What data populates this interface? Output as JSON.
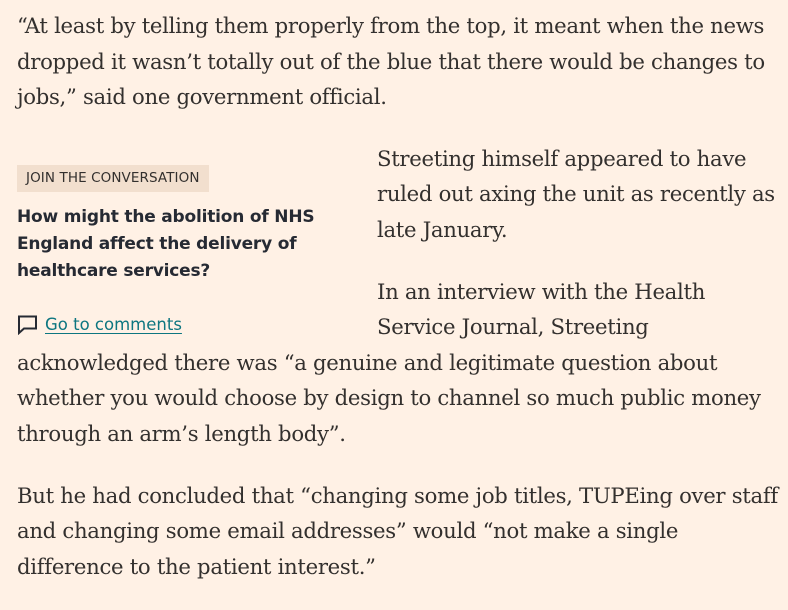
{
  "article": {
    "paragraph_1": "“At least by telling them properly from the top, it meant when the news dropped it wasn’t totally out of the blue that there would be changes to jobs,” said one government official.",
    "paragraph_2": "Streeting himself appeared to have ruled out axing the unit as recently as late January.",
    "paragraph_3": "In an interview with the Health Service Journal, Streeting acknowledged there was “a genuine and legitimate question about whether you would choose by design to channel so much public money through an arm’s length body”.",
    "paragraph_4": "But he had concluded that “changing some job titles, TUPEing over staff and changing some email addresses” would “not make a single difference to the patient interest.”"
  },
  "conversation": {
    "label": "Join the conversation",
    "question": "How might the abolition of NHS England affect the delivery of healthcare services?",
    "link_text": "Go to comments",
    "icon": "comment-icon"
  },
  "colors": {
    "background": "#fff1e5",
    "text": "#33302e",
    "label_background": "#f2dfce",
    "link": "#0d7680"
  }
}
